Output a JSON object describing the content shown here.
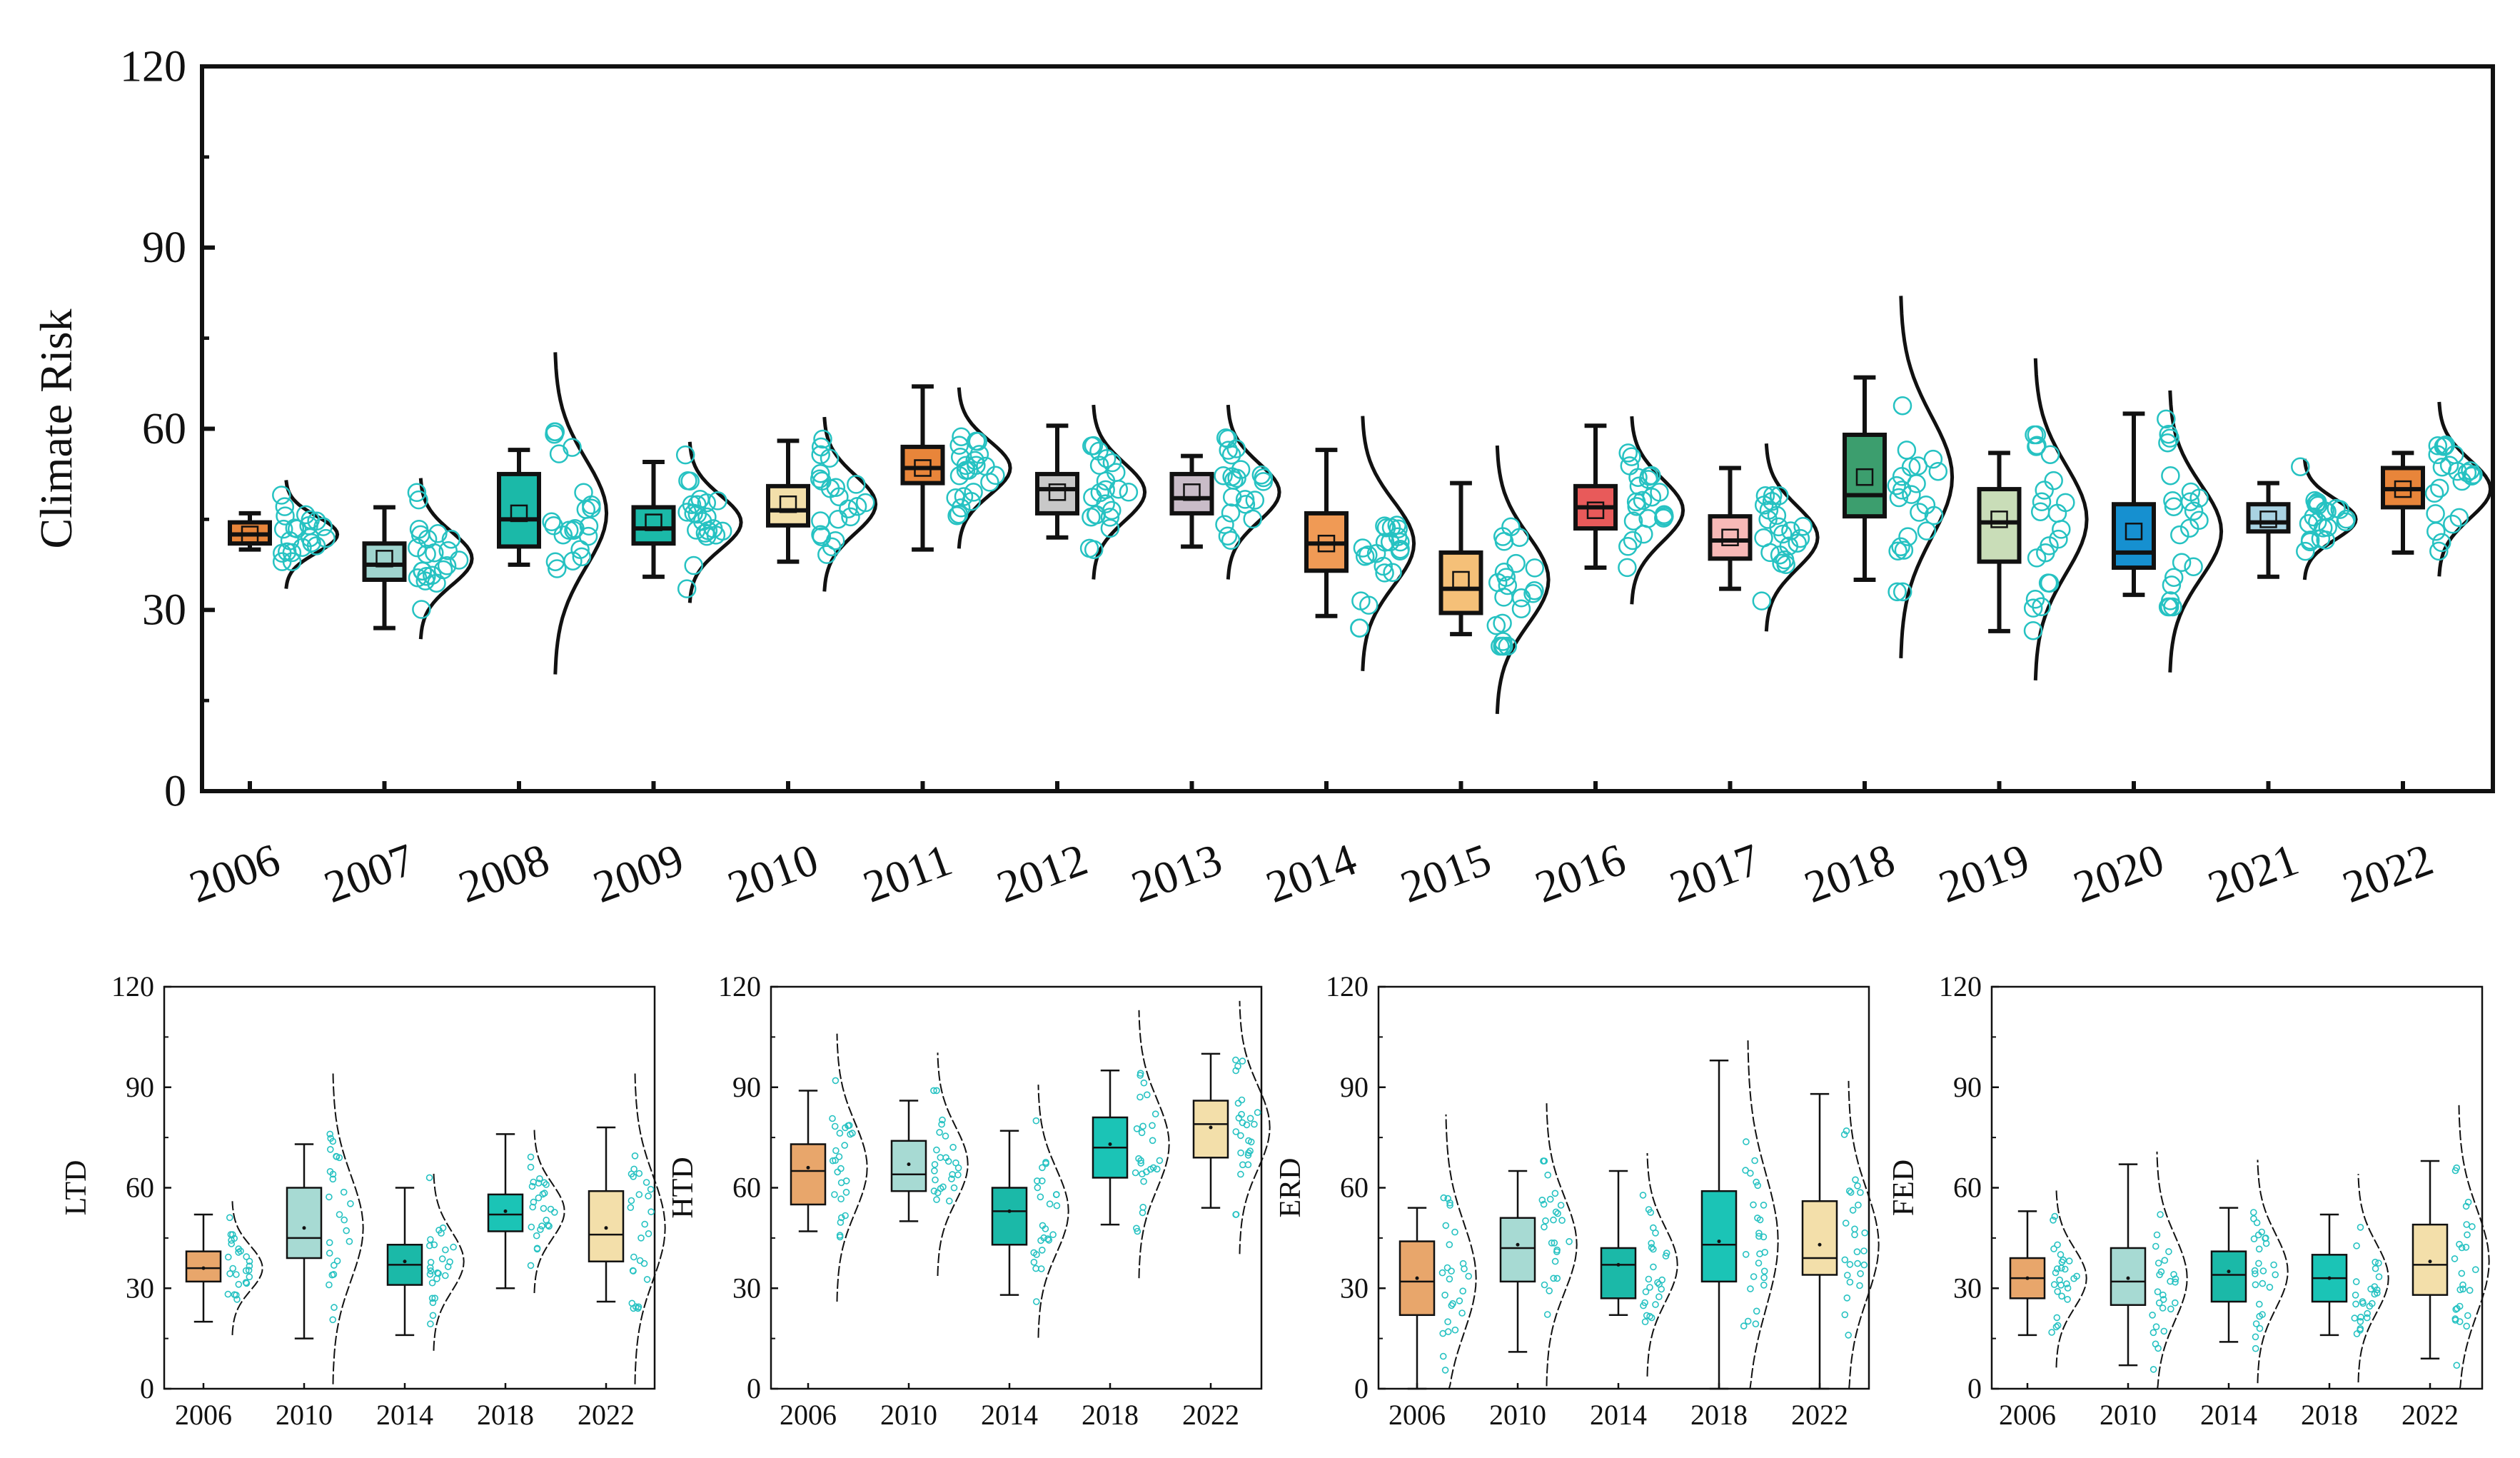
{
  "chart_data": [
    {
      "id": "main",
      "type": "box",
      "title": "",
      "ylabel": "Climate Risk",
      "xlabel": "",
      "ylim": [
        0,
        120
      ],
      "yticks": [
        "0",
        "30",
        "60",
        "90",
        "120"
      ],
      "categories": [
        "2006",
        "2007",
        "2008",
        "2009",
        "2010",
        "2011",
        "2012",
        "2013",
        "2014",
        "2015",
        "2016",
        "2017",
        "2018",
        "2019",
        "2020",
        "2021",
        "2022"
      ],
      "boxes": [
        {
          "min": 40,
          "q1": 41,
          "median": 42.5,
          "q3": 44.5,
          "max": 46,
          "mean": 42.5,
          "color": "#E8853A"
        },
        {
          "min": 27,
          "q1": 35,
          "median": 37.5,
          "q3": 41,
          "max": 47,
          "mean": 38.5,
          "color": "#9FD4CE"
        },
        {
          "min": 37.5,
          "q1": 40.5,
          "median": 45,
          "q3": 52.5,
          "max": 56.5,
          "mean": 46,
          "color": "#1BB9A8"
        },
        {
          "min": 35.5,
          "q1": 41,
          "median": 43.5,
          "q3": 47,
          "max": 54.5,
          "mean": 44.5,
          "color": "#1BB9A8"
        },
        {
          "min": 38,
          "q1": 44,
          "median": 46.5,
          "q3": 50.5,
          "max": 58,
          "mean": 47.5,
          "color": "#F3DFAA"
        },
        {
          "min": 40,
          "q1": 51,
          "median": 53.5,
          "q3": 57,
          "max": 67,
          "mean": 53.5,
          "color": "#E8853A"
        },
        {
          "min": 42,
          "q1": 46,
          "median": 50,
          "q3": 52.5,
          "max": 60.5,
          "mean": 49.5,
          "color": "#C8C8C8"
        },
        {
          "min": 40.5,
          "q1": 46,
          "median": 48.5,
          "q3": 52.5,
          "max": 55.5,
          "mean": 49.5,
          "color": "#C9BCC8"
        },
        {
          "min": 29,
          "q1": 36.5,
          "median": 41,
          "q3": 46,
          "max": 56.5,
          "mean": 41,
          "color": "#F09A55"
        },
        {
          "min": 26,
          "q1": 29.5,
          "median": 33.5,
          "q3": 39.5,
          "max": 51,
          "mean": 35,
          "color": "#F5C078"
        },
        {
          "min": 37,
          "q1": 43.5,
          "median": 47,
          "q3": 50.5,
          "max": 60.5,
          "mean": 46.5,
          "color": "#E85A5A"
        },
        {
          "min": 33.5,
          "q1": 38.5,
          "median": 41.5,
          "q3": 45.5,
          "max": 53.5,
          "mean": 42,
          "color": "#F7B9B7"
        },
        {
          "min": 35,
          "q1": 45.5,
          "median": 49,
          "q3": 59,
          "max": 68.5,
          "mean": 52,
          "color": "#3C9E6E"
        },
        {
          "min": 26.5,
          "q1": 38,
          "median": 44.5,
          "q3": 50,
          "max": 56,
          "mean": 45,
          "color": "#C9DDB8"
        },
        {
          "min": 32.5,
          "q1": 37,
          "median": 39.5,
          "q3": 47.5,
          "max": 62.5,
          "mean": 43,
          "color": "#1690D0"
        },
        {
          "min": 35.5,
          "q1": 43,
          "median": 44.5,
          "q3": 47.5,
          "max": 51,
          "mean": 45,
          "color": "#A9D2E2"
        },
        {
          "min": 39.5,
          "q1": 47,
          "median": 50,
          "q3": 53.5,
          "max": 56,
          "mean": 50,
          "color": "#E8853A"
        }
      ]
    },
    {
      "id": "ltd",
      "type": "box",
      "title": "",
      "ylabel": "LTD",
      "ylim": [
        0,
        120
      ],
      "yticks": [
        "0",
        "30",
        "60",
        "90",
        "120"
      ],
      "categories": [
        "2006",
        "2010",
        "2014",
        "2018",
        "2022"
      ],
      "boxes": [
        {
          "min": 20,
          "q1": 32,
          "median": 36,
          "q3": 41,
          "max": 52,
          "mean": 36,
          "color": "#E8A66B"
        },
        {
          "min": 15,
          "q1": 39,
          "median": 45,
          "q3": 60,
          "max": 73,
          "mean": 48,
          "color": "#A7DAD3"
        },
        {
          "min": 16,
          "q1": 31,
          "median": 37,
          "q3": 43,
          "max": 60,
          "mean": 38,
          "color": "#1BB9A8"
        },
        {
          "min": 30,
          "q1": 47,
          "median": 52,
          "q3": 58,
          "max": 76,
          "mean": 53,
          "color": "#1BC4B6"
        },
        {
          "min": 26,
          "q1": 38,
          "median": 46,
          "q3": 59,
          "max": 78,
          "mean": 48,
          "color": "#F3DFAA"
        }
      ]
    },
    {
      "id": "htd",
      "type": "box",
      "title": "",
      "ylabel": "HTD",
      "ylim": [
        0,
        120
      ],
      "yticks": [
        "0",
        "30",
        "60",
        "90",
        "120"
      ],
      "categories": [
        "2006",
        "2010",
        "2014",
        "2018",
        "2022"
      ],
      "boxes": [
        {
          "min": 47,
          "q1": 55,
          "median": 65,
          "q3": 73,
          "max": 89,
          "mean": 66,
          "color": "#E8A66B"
        },
        {
          "min": 50,
          "q1": 59,
          "median": 64,
          "q3": 74,
          "max": 86,
          "mean": 67,
          "color": "#A7DAD3"
        },
        {
          "min": 28,
          "q1": 43,
          "median": 53,
          "q3": 60,
          "max": 77,
          "mean": 53,
          "color": "#1BB9A8"
        },
        {
          "min": 49,
          "q1": 63,
          "median": 72,
          "q3": 81,
          "max": 95,
          "mean": 73,
          "color": "#1BC4B6"
        },
        {
          "min": 54,
          "q1": 69,
          "median": 79,
          "q3": 86,
          "max": 100,
          "mean": 78,
          "color": "#F3DFAA"
        }
      ]
    },
    {
      "id": "erd",
      "type": "box",
      "title": "",
      "ylabel": "ERD",
      "ylim": [
        0,
        120
      ],
      "yticks": [
        "0",
        "30",
        "60",
        "90",
        "120"
      ],
      "categories": [
        "2006",
        "2010",
        "2014",
        "2018",
        "2022"
      ],
      "boxes": [
        {
          "min": 0,
          "q1": 22,
          "median": 32,
          "q3": 44,
          "max": 54,
          "mean": 33,
          "color": "#E8A66B"
        },
        {
          "min": 11,
          "q1": 32,
          "median": 42,
          "q3": 51,
          "max": 65,
          "mean": 43,
          "color": "#A7DAD3"
        },
        {
          "min": 22,
          "q1": 27,
          "median": 37,
          "q3": 42,
          "max": 65,
          "mean": 37,
          "color": "#1BB9A8"
        },
        {
          "min": 0,
          "q1": 32,
          "median": 43,
          "q3": 59,
          "max": 98,
          "mean": 44,
          "color": "#1BC4B6"
        },
        {
          "min": 0,
          "q1": 34,
          "median": 39,
          "q3": 56,
          "max": 88,
          "mean": 43,
          "color": "#F3DFAA"
        }
      ]
    },
    {
      "id": "fed",
      "type": "box",
      "title": "",
      "ylabel": "FED",
      "ylim": [
        0,
        120
      ],
      "yticks": [
        "0",
        "30",
        "60",
        "90",
        "120"
      ],
      "categories": [
        "2006",
        "2010",
        "2014",
        "2018",
        "2022"
      ],
      "boxes": [
        {
          "min": 16,
          "q1": 27,
          "median": 33,
          "q3": 39,
          "max": 53,
          "mean": 33,
          "color": "#E8A66B"
        },
        {
          "min": 7,
          "q1": 25,
          "median": 32,
          "q3": 42,
          "max": 67,
          "mean": 33,
          "color": "#A7DAD3"
        },
        {
          "min": 14,
          "q1": 26,
          "median": 34,
          "q3": 41,
          "max": 54,
          "mean": 35,
          "color": "#1BB9A8"
        },
        {
          "min": 16,
          "q1": 26,
          "median": 33,
          "q3": 40,
          "max": 52,
          "mean": 33,
          "color": "#1BC4B6"
        },
        {
          "min": 9,
          "q1": 28,
          "median": 37,
          "q3": 49,
          "max": 68,
          "mean": 38,
          "color": "#F3DFAA"
        }
      ]
    }
  ],
  "colors": {
    "scatter": "#26C2C2",
    "axis": "#111111",
    "curve": "#111111"
  }
}
